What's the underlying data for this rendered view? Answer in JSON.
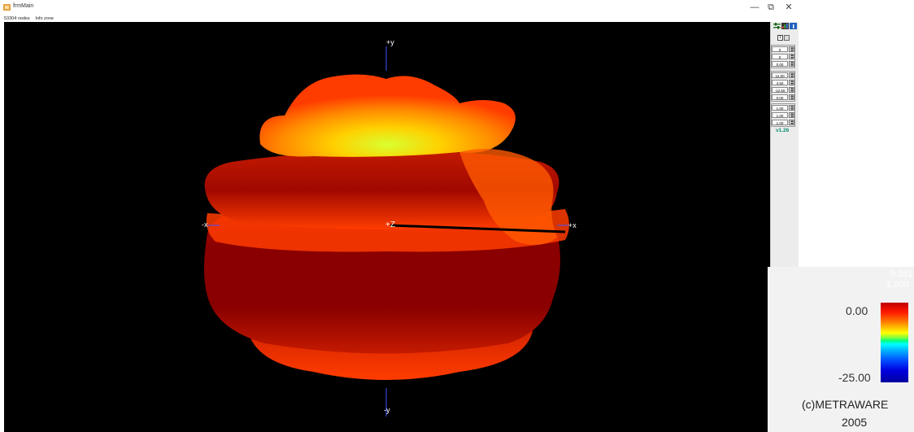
{
  "window": {
    "title": "frmMain",
    "minimize_glyph": "—",
    "restore_glyph": "⧉",
    "close_glyph": "✕"
  },
  "status_bar": {
    "nodes": "53304 nodes",
    "info": "Info zone"
  },
  "viewport": {
    "axes": {
      "plus_y": "+y",
      "minus_y": "-y",
      "plus_x": "+x",
      "minus_x": "-x",
      "plus_z": "+Z"
    },
    "shape_colors": [
      "#8a0000",
      "#c41a00",
      "#ff3c00",
      "#ff8a00",
      "#ffd000",
      "#d8ff30"
    ]
  },
  "side_panel": {
    "toolbar_icons": [
      "settings-icon",
      "chart-icon",
      "info-icon"
    ],
    "dropdown_value": "1",
    "rotation_values": [
      "0",
      "0",
      "0.00"
    ],
    "position_values": [
      "12.00",
      "4.50",
      "-12.50",
      "0.00"
    ],
    "scale_values": [
      "1.00",
      "1.00",
      "1.00"
    ],
    "version": "v1.26"
  },
  "legend": {
    "max_label": "0.00",
    "min_label": "-25.00",
    "copyright_line1": "(c)METRAWARE",
    "copyright_line2": "2005",
    "faded_text1": "0.381",
    "faded_text2": "1.000"
  }
}
